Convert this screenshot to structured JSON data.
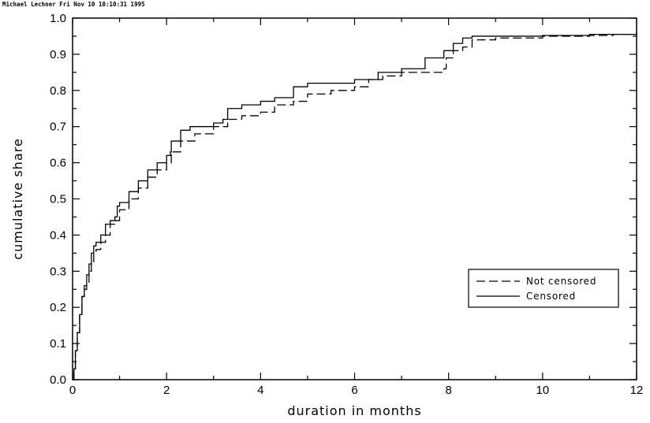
{
  "header": {
    "stamp": "Michael Lechner Fri Nov 10 10:10:31 1995"
  },
  "colors": {
    "line": "#000000",
    "background": "#ffffff"
  },
  "chart_data": {
    "type": "line",
    "xlabel": "duration in months",
    "ylabel": "cumulative share",
    "xlim": [
      0,
      12
    ],
    "ylim": [
      0,
      1.0
    ],
    "xticks": [
      0,
      2,
      4,
      6,
      8,
      10,
      12
    ],
    "xtick_labels": [
      "0",
      "2",
      "4",
      "6",
      "8",
      "10",
      "12"
    ],
    "yticks": [
      0,
      0.1,
      0.2,
      0.3,
      0.4,
      0.5,
      0.6,
      0.7,
      0.8,
      0.9,
      1.0
    ],
    "ytick_labels": [
      "0.0",
      "0.1",
      "0.2",
      "0.3",
      "0.4",
      "0.5",
      "0.6",
      "0.7",
      "0.8",
      "0.9",
      "1.0"
    ],
    "grid": false,
    "legend_position": "lower-right",
    "series": [
      {
        "name": "Not censored",
        "style": "dashed",
        "x": [
          0,
          0.03,
          0.06,
          0.1,
          0.15,
          0.2,
          0.25,
          0.3,
          0.35,
          0.4,
          0.45,
          0.5,
          0.6,
          0.7,
          0.8,
          0.9,
          1.0,
          1.2,
          1.4,
          1.6,
          1.8,
          2.0,
          2.1,
          2.3,
          2.6,
          3.0,
          3.3,
          3.6,
          4.0,
          4.3,
          4.7,
          5.0,
          5.5,
          6.0,
          6.3,
          6.6,
          7.0,
          7.5,
          7.9,
          7.95,
          8.1,
          8.3,
          8.5,
          9.0,
          10.0,
          11.0,
          11.5,
          12.0
        ],
        "y": [
          0.0,
          0.03,
          0.08,
          0.13,
          0.18,
          0.23,
          0.25,
          0.27,
          0.3,
          0.32,
          0.35,
          0.36,
          0.38,
          0.4,
          0.43,
          0.44,
          0.47,
          0.5,
          0.53,
          0.56,
          0.58,
          0.6,
          0.63,
          0.66,
          0.68,
          0.7,
          0.72,
          0.73,
          0.74,
          0.76,
          0.77,
          0.79,
          0.8,
          0.81,
          0.83,
          0.84,
          0.85,
          0.85,
          0.86,
          0.89,
          0.91,
          0.92,
          0.94,
          0.945,
          0.95,
          0.952,
          0.955,
          0.958
        ]
      },
      {
        "name": "Censored",
        "style": "solid",
        "x": [
          0,
          0.03,
          0.06,
          0.1,
          0.15,
          0.2,
          0.25,
          0.3,
          0.35,
          0.4,
          0.45,
          0.5,
          0.6,
          0.7,
          0.8,
          0.9,
          0.95,
          1.0,
          1.2,
          1.4,
          1.6,
          1.8,
          2.0,
          2.08,
          2.1,
          2.3,
          2.5,
          3.0,
          3.2,
          3.3,
          3.6,
          4.0,
          4.3,
          4.7,
          5.0,
          5.5,
          6.0,
          6.5,
          7.0,
          7.5,
          7.9,
          8.1,
          8.3,
          8.5,
          9.0,
          10.0,
          11.0,
          12.0
        ],
        "y": [
          0.0,
          0.03,
          0.08,
          0.13,
          0.18,
          0.23,
          0.26,
          0.29,
          0.32,
          0.35,
          0.37,
          0.38,
          0.4,
          0.43,
          0.44,
          0.45,
          0.48,
          0.49,
          0.52,
          0.55,
          0.58,
          0.6,
          0.62,
          0.63,
          0.66,
          0.69,
          0.7,
          0.71,
          0.72,
          0.75,
          0.76,
          0.77,
          0.78,
          0.81,
          0.82,
          0.82,
          0.83,
          0.85,
          0.86,
          0.89,
          0.91,
          0.93,
          0.945,
          0.95,
          0.95,
          0.952,
          0.955,
          0.96
        ]
      }
    ]
  }
}
